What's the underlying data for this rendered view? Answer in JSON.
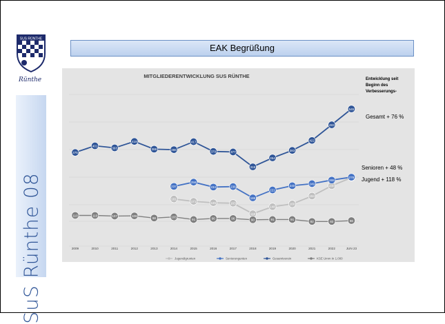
{
  "sidebar": {
    "logo_text": "SUS RÜNTHE",
    "signature": "Rünthe",
    "vertical_title": "SuS Rünthe 08"
  },
  "banner": {
    "title": "EAK Begrüßung"
  },
  "chart_data": {
    "type": "line",
    "title": "MITGLIEDERENTWICKLUNG SUS RÜNTHE",
    "categories": [
      "2009",
      "2010",
      "2011",
      "2012",
      "2013",
      "2014",
      "2015",
      "2016",
      "2017",
      "2018",
      "2019",
      "2020",
      "2021",
      "2022",
      "JUN 23"
    ],
    "series": [
      {
        "name": "Jugendigrunten",
        "color": "#bfbfbf",
        "values": [
          null,
          null,
          null,
          null,
          null,
          181,
          171,
          165,
          163,
          118,
          148,
          160,
          194,
          240,
          276
        ]
      },
      {
        "name": "Seniorengunten",
        "color": "#4472c4",
        "values": [
          null,
          null,
          null,
          null,
          null,
          237,
          256,
          234,
          236,
          186,
          221,
          240,
          249,
          265,
          278
        ]
      },
      {
        "name": "Gesamtverein",
        "color": "#2f5597",
        "values": [
          375,
          401,
          393,
          418,
          388,
          386,
          417,
          379,
          377,
          319,
          354,
          383,
          422,
          483,
          545
        ]
      },
      {
        "name": "KSE Umm In 1.000",
        "color": "#7f7f7f",
        "values": [
          110,
          110,
          107,
          108,
          98,
          103,
          91,
          96,
          96,
          90,
          91,
          91,
          82,
          82,
          86
        ]
      }
    ],
    "annotation_header": "Entwicklung seit Beginn des Verbesserungs-",
    "annotations": [
      "Gesamt + 76 %",
      "Senioren + 48 %",
      "Jugend + 118 %"
    ]
  }
}
